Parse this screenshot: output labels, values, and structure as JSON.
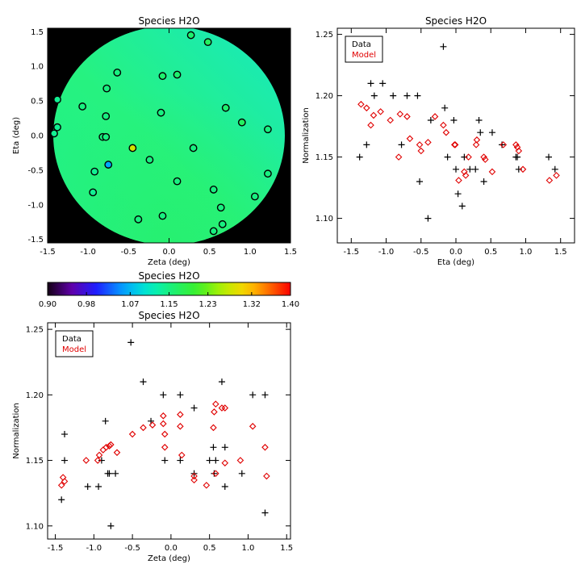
{
  "chart_data": [
    {
      "type": "heatmap",
      "title": "Species H2O",
      "xlabel": "Zeta (deg)",
      "ylabel": "Eta (deg)",
      "xlim": [
        -1.5,
        1.5
      ],
      "ylim": [
        -1.55,
        1.55
      ],
      "xticks": [
        "-1.5",
        "-1.0",
        "-0.5",
        "0.0",
        "0.5",
        "1.0",
        "1.5"
      ],
      "yticks": [
        "-1.5",
        "-1.0",
        "-0.5",
        "0.0",
        "0.5",
        "1.0",
        "1.5"
      ],
      "background_color": "#000000",
      "field_colors": {
        "top_right": "#18e8c0",
        "left": "#20f088",
        "bottom": "#2af060",
        "center": "#26f280"
      },
      "points": [
        {
          "x": 0.27,
          "y": 1.45,
          "v": 1.16
        },
        {
          "x": 0.48,
          "y": 1.35,
          "v": 1.17
        },
        {
          "x": -0.64,
          "y": 0.91,
          "v": 1.15
        },
        {
          "x": -0.08,
          "y": 0.86,
          "v": 1.16
        },
        {
          "x": 0.1,
          "y": 0.88,
          "v": 1.16
        },
        {
          "x": -0.77,
          "y": 0.68,
          "v": 1.15
        },
        {
          "x": -1.38,
          "y": 0.52,
          "v": 1.14
        },
        {
          "x": -1.07,
          "y": 0.42,
          "v": 1.15
        },
        {
          "x": 0.7,
          "y": 0.4,
          "v": 1.16
        },
        {
          "x": -0.1,
          "y": 0.33,
          "v": 1.15
        },
        {
          "x": -0.78,
          "y": 0.28,
          "v": 1.15
        },
        {
          "x": 0.9,
          "y": 0.19,
          "v": 1.17
        },
        {
          "x": -1.38,
          "y": 0.12,
          "v": 1.14
        },
        {
          "x": 1.22,
          "y": 0.09,
          "v": 1.15
        },
        {
          "x": -1.42,
          "y": 0.03,
          "v": 1.14
        },
        {
          "x": -0.82,
          "y": -0.02,
          "v": 1.15
        },
        {
          "x": -0.78,
          "y": -0.02,
          "v": 1.15
        },
        {
          "x": -0.45,
          "y": -0.18,
          "v": 1.28
        },
        {
          "x": 0.3,
          "y": -0.18,
          "v": 1.15
        },
        {
          "x": -0.24,
          "y": -0.35,
          "v": 1.15
        },
        {
          "x": -0.75,
          "y": -0.42,
          "v": 1.06
        },
        {
          "x": -0.92,
          "y": -0.52,
          "v": 1.14
        },
        {
          "x": 1.22,
          "y": -0.55,
          "v": 1.15
        },
        {
          "x": 0.1,
          "y": -0.66,
          "v": 1.15
        },
        {
          "x": 0.55,
          "y": -0.78,
          "v": 1.15
        },
        {
          "x": -0.94,
          "y": -0.82,
          "v": 1.14
        },
        {
          "x": 1.06,
          "y": -0.88,
          "v": 1.15
        },
        {
          "x": 0.64,
          "y": -1.04,
          "v": 1.15
        },
        {
          "x": -0.08,
          "y": -1.16,
          "v": 1.15
        },
        {
          "x": -0.38,
          "y": -1.21,
          "v": 1.15
        },
        {
          "x": 0.66,
          "y": -1.28,
          "v": 1.15
        },
        {
          "x": 0.55,
          "y": -1.38,
          "v": 1.15
        }
      ]
    },
    {
      "type": "scatter",
      "title": "Species H2O",
      "xlabel": "Eta (deg)",
      "ylabel": "Normalization",
      "xlim": [
        -1.7,
        1.7
      ],
      "ylim": [
        1.08,
        1.255
      ],
      "xticks": [
        "-1.5",
        "-1.0",
        "-0.5",
        "0.0",
        "0.5",
        "1.0",
        "1.5"
      ],
      "yticks": [
        "1.10",
        "1.15",
        "1.20",
        "1.25"
      ],
      "legend": "top-left",
      "series": [
        {
          "name": "Data",
          "color": "#000000",
          "marker": "plus",
          "points": [
            [
              -1.38,
              1.15
            ],
            [
              -1.28,
              1.16
            ],
            [
              -1.22,
              1.21
            ],
            [
              -1.17,
              1.2
            ],
            [
              -1.05,
              1.21
            ],
            [
              -0.9,
              1.2
            ],
            [
              -0.78,
              1.16
            ],
            [
              -0.7,
              1.2
            ],
            [
              -0.55,
              1.2
            ],
            [
              -0.52,
              1.13
            ],
            [
              -0.4,
              1.1
            ],
            [
              -0.36,
              1.18
            ],
            [
              -0.18,
              1.24
            ],
            [
              -0.16,
              1.19
            ],
            [
              -0.12,
              1.15
            ],
            [
              -0.03,
              1.18
            ],
            [
              0.0,
              1.14
            ],
            [
              0.03,
              1.12
            ],
            [
              0.09,
              1.11
            ],
            [
              0.12,
              1.15
            ],
            [
              0.2,
              1.14
            ],
            [
              0.28,
              1.14
            ],
            [
              0.33,
              1.18
            ],
            [
              0.35,
              1.17
            ],
            [
              0.4,
              1.13
            ],
            [
              0.52,
              1.17
            ],
            [
              0.66,
              1.16
            ],
            [
              0.86,
              1.15
            ],
            [
              0.88,
              1.15
            ],
            [
              0.9,
              1.14
            ],
            [
              1.33,
              1.15
            ],
            [
              1.42,
              1.14
            ]
          ]
        },
        {
          "name": "Model",
          "color": "#e00000",
          "marker": "diamond",
          "points": [
            [
              -1.36,
              1.193
            ],
            [
              -1.28,
              1.19
            ],
            [
              -1.22,
              1.176
            ],
            [
              -1.18,
              1.184
            ],
            [
              -1.08,
              1.187
            ],
            [
              -0.94,
              1.18
            ],
            [
              -0.82,
              1.15
            ],
            [
              -0.8,
              1.185
            ],
            [
              -0.7,
              1.183
            ],
            [
              -0.66,
              1.165
            ],
            [
              -0.52,
              1.16
            ],
            [
              -0.5,
              1.155
            ],
            [
              -0.4,
              1.162
            ],
            [
              -0.3,
              1.183
            ],
            [
              -0.18,
              1.176
            ],
            [
              -0.14,
              1.17
            ],
            [
              -0.02,
              1.16
            ],
            [
              -0.01,
              1.16
            ],
            [
              0.04,
              1.131
            ],
            [
              0.12,
              1.138
            ],
            [
              0.14,
              1.135
            ],
            [
              0.18,
              1.15
            ],
            [
              0.29,
              1.16
            ],
            [
              0.3,
              1.164
            ],
            [
              0.4,
              1.15
            ],
            [
              0.42,
              1.148
            ],
            [
              0.52,
              1.138
            ],
            [
              0.68,
              1.16
            ],
            [
              0.86,
              1.16
            ],
            [
              0.88,
              1.158
            ],
            [
              0.9,
              1.155
            ],
            [
              0.96,
              1.14
            ],
            [
              1.34,
              1.131
            ],
            [
              1.44,
              1.135
            ]
          ]
        }
      ]
    },
    {
      "type": "colorbar",
      "title": "Species H2O",
      "ticks": [
        "0.90",
        "0.98",
        "1.07",
        "1.15",
        "1.23",
        "1.32",
        "1.40"
      ],
      "range": [
        0.9,
        1.4
      ]
    },
    {
      "type": "scatter",
      "title": "Species H2O",
      "xlabel": "Zeta (deg)",
      "ylabel": "Normalization",
      "xlim": [
        -1.6,
        1.55
      ],
      "ylim": [
        1.09,
        1.255
      ],
      "xticks": [
        "-1.5",
        "-1.0",
        "-0.5",
        "0.0",
        "0.5",
        "1.0",
        "1.5"
      ],
      "yticks": [
        "1.10",
        "1.15",
        "1.20",
        "1.25"
      ],
      "legend": "top-left",
      "series": [
        {
          "name": "Data",
          "color": "#000000",
          "marker": "plus",
          "points": [
            [
              -1.42,
              1.12
            ],
            [
              -1.38,
              1.17
            ],
            [
              -1.38,
              1.15
            ],
            [
              -1.08,
              1.13
            ],
            [
              -0.94,
              1.13
            ],
            [
              -0.9,
              1.15
            ],
            [
              -0.85,
              1.18
            ],
            [
              -0.82,
              1.14
            ],
            [
              -0.8,
              1.14
            ],
            [
              -0.78,
              1.1
            ],
            [
              -0.72,
              1.14
            ],
            [
              -0.52,
              1.24
            ],
            [
              -0.36,
              1.21
            ],
            [
              -0.26,
              1.18
            ],
            [
              -0.1,
              1.2
            ],
            [
              -0.08,
              1.15
            ],
            [
              0.12,
              1.2
            ],
            [
              0.12,
              1.15
            ],
            [
              0.3,
              1.19
            ],
            [
              0.3,
              1.14
            ],
            [
              0.5,
              1.15
            ],
            [
              0.55,
              1.16
            ],
            [
              0.56,
              1.14
            ],
            [
              0.58,
              1.15
            ],
            [
              0.66,
              1.21
            ],
            [
              0.7,
              1.16
            ],
            [
              0.7,
              1.13
            ],
            [
              0.92,
              1.14
            ],
            [
              1.06,
              1.2
            ],
            [
              1.22,
              1.2
            ],
            [
              1.22,
              1.11
            ]
          ]
        },
        {
          "name": "Model",
          "color": "#e00000",
          "marker": "diamond",
          "points": [
            [
              -1.42,
              1.131
            ],
            [
              -1.4,
              1.137
            ],
            [
              -1.38,
              1.134
            ],
            [
              -1.1,
              1.15
            ],
            [
              -0.95,
              1.15
            ],
            [
              -0.93,
              1.154
            ],
            [
              -0.88,
              1.158
            ],
            [
              -0.84,
              1.16
            ],
            [
              -0.8,
              1.161
            ],
            [
              -0.78,
              1.162
            ],
            [
              -0.7,
              1.156
            ],
            [
              -0.5,
              1.17
            ],
            [
              -0.36,
              1.175
            ],
            [
              -0.24,
              1.177
            ],
            [
              -0.1,
              1.184
            ],
            [
              -0.1,
              1.178
            ],
            [
              -0.08,
              1.17
            ],
            [
              -0.08,
              1.16
            ],
            [
              0.12,
              1.176
            ],
            [
              0.12,
              1.185
            ],
            [
              0.14,
              1.154
            ],
            [
              0.3,
              1.138
            ],
            [
              0.3,
              1.135
            ],
            [
              0.46,
              1.131
            ],
            [
              0.55,
              1.175
            ],
            [
              0.56,
              1.187
            ],
            [
              0.58,
              1.193
            ],
            [
              0.58,
              1.14
            ],
            [
              0.66,
              1.19
            ],
            [
              0.7,
              1.19
            ],
            [
              0.7,
              1.148
            ],
            [
              0.9,
              1.15
            ],
            [
              1.06,
              1.176
            ],
            [
              1.22,
              1.16
            ],
            [
              1.24,
              1.138
            ]
          ]
        }
      ]
    }
  ],
  "legend": {
    "data_label": "Data",
    "model_label": "Model"
  }
}
